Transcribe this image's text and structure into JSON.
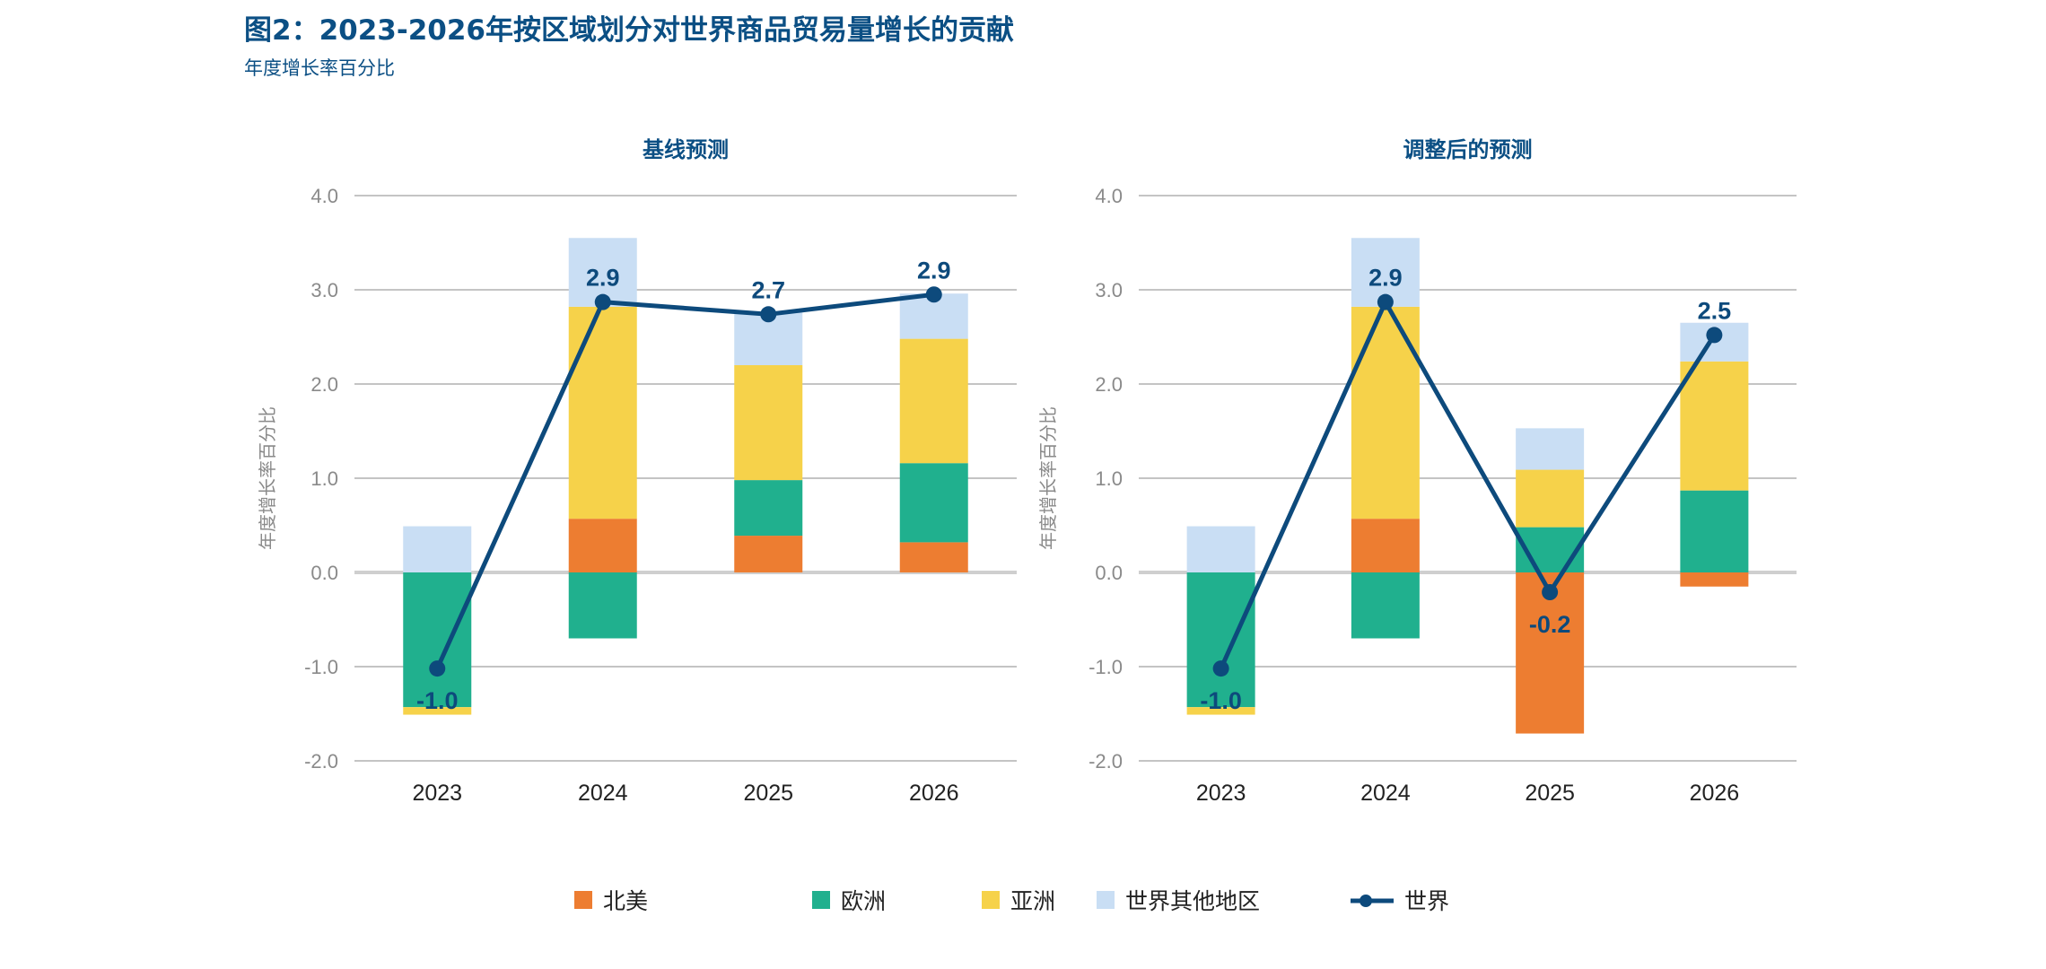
{
  "title": "图2：2023-2026年按区域划分对世界商品贸易量增长的贡献",
  "subtitle": "年度增长率百分比",
  "chart_data": [
    {
      "type": "bar",
      "stacked": true,
      "title": "基线预测",
      "ylabel": "年度增长率百分比",
      "xlabel": "",
      "ylim": [
        -2.0,
        4.0
      ],
      "yticks": [
        "4.0",
        "3.0",
        "2.0",
        "1.0",
        "0.0",
        "-1.0",
        "-2.0"
      ],
      "grid": true,
      "categories": [
        "2023",
        "2024",
        "2025",
        "2026"
      ],
      "series": [
        {
          "name": "北美",
          "color": "#ed7d31",
          "values": [
            0.0,
            0.57,
            0.39,
            0.32
          ]
        },
        {
          "name": "欧洲",
          "color": "#20b08e",
          "values": [
            -1.43,
            -0.7,
            0.59,
            0.84
          ]
        },
        {
          "name": "亚洲",
          "color": "#f6d24a",
          "values": [
            -0.08,
            2.25,
            1.22,
            1.32
          ]
        },
        {
          "name": "世界其他地区",
          "color": "#c9def4",
          "values": [
            0.49,
            0.73,
            0.56,
            0.48
          ]
        }
      ],
      "line": {
        "name": "世界",
        "color": "#0d4a7c",
        "values": [
          -1.02,
          2.87,
          2.74,
          2.95
        ],
        "labels": [
          "-1.0",
          "2.9",
          "2.7",
          "2.9"
        ]
      }
    },
    {
      "type": "bar",
      "stacked": true,
      "title": "调整后的预测",
      "ylabel": "年度增长率百分比",
      "xlabel": "",
      "ylim": [
        -2.0,
        4.0
      ],
      "yticks": [
        "4.0",
        "3.0",
        "2.0",
        "1.0",
        "0.0",
        "-1.0",
        "-2.0"
      ],
      "grid": true,
      "categories": [
        "2023",
        "2024",
        "2025",
        "2026"
      ],
      "series": [
        {
          "name": "北美",
          "color": "#ed7d31",
          "values": [
            0.0,
            0.57,
            -1.71,
            -0.15
          ]
        },
        {
          "name": "欧洲",
          "color": "#20b08e",
          "values": [
            -1.43,
            -0.7,
            0.48,
            0.87
          ]
        },
        {
          "name": "亚洲",
          "color": "#f6d24a",
          "values": [
            -0.08,
            2.25,
            0.61,
            1.37
          ]
        },
        {
          "name": "世界其他地区",
          "color": "#c9def4",
          "values": [
            0.49,
            0.73,
            0.44,
            0.41
          ]
        }
      ],
      "line": {
        "name": "世界",
        "color": "#0d4a7c",
        "values": [
          -1.02,
          2.87,
          -0.21,
          2.52
        ],
        "labels": [
          "-1.0",
          "2.9",
          "-0.2",
          "2.5"
        ]
      }
    }
  ],
  "legend": {
    "placement": "bottom",
    "items": [
      {
        "label": "北美",
        "color": "#ed7d31",
        "kind": "square"
      },
      {
        "label": "欧洲",
        "color": "#20b08e",
        "kind": "square"
      },
      {
        "label": "亚洲",
        "color": "#f6d24a",
        "kind": "square"
      },
      {
        "label": "世界其他地区",
        "color": "#c9def4",
        "kind": "square"
      },
      {
        "label": "世界",
        "color": "#0d4a7c",
        "kind": "line-marker"
      }
    ]
  }
}
